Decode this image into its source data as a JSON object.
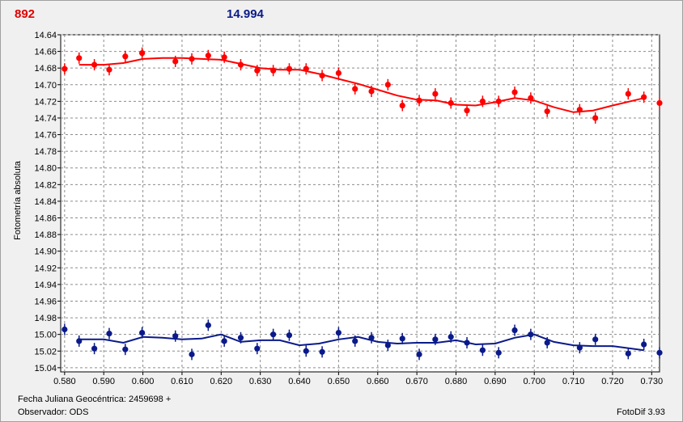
{
  "header": {
    "left_value": "892",
    "right_value": "14.994"
  },
  "footer": {
    "julian_label": "Fecha Juliana Geocéntrica: 2459698 +",
    "observer_label": "Observador: ODS",
    "version_label": "FotoDif 3.93"
  },
  "colors": {
    "red": "#ff0000",
    "blue": "#0a1a8a",
    "grid": "#8c8c8c"
  },
  "chart_data": {
    "type": "scatter",
    "title": "",
    "xlabel": "",
    "ylabel": "Fotometría absoluta",
    "xlim": [
      0.579,
      0.732
    ],
    "ylim": [
      14.64,
      15.045
    ],
    "y_inverted": true,
    "grid": true,
    "x_ticks": [
      0.58,
      0.59,
      0.6,
      0.61,
      0.62,
      0.63,
      0.64,
      0.65,
      0.66,
      0.67,
      0.68,
      0.69,
      0.7,
      0.71,
      0.72,
      0.73
    ],
    "x_tick_labels": [
      "0.580",
      "0.590",
      "0.600",
      "0.610",
      "0.620",
      "0.630",
      "0.640",
      "0.650",
      "0.660",
      "0.670",
      "0.680",
      "0.690",
      "0.700",
      "0.710",
      "0.720",
      "0.730"
    ],
    "y_ticks": [
      14.64,
      14.66,
      14.68,
      14.7,
      14.72,
      14.74,
      14.76,
      14.78,
      14.8,
      14.82,
      14.84,
      14.86,
      14.88,
      14.9,
      14.92,
      14.94,
      14.96,
      14.98,
      15.0,
      15.02,
      15.04
    ],
    "y_tick_labels": [
      "14.64",
      "14.66",
      "14.68",
      "14.70",
      "14.72",
      "14.74",
      "14.76",
      "14.78",
      "14.80",
      "14.82",
      "14.84",
      "14.86",
      "14.88",
      "14.90",
      "14.92",
      "14.94",
      "14.96",
      "14.98",
      "15.00",
      "15.02",
      "15.04"
    ],
    "series": [
      {
        "color": "#ff0000",
        "points": [
          [
            0.58,
            14.681
          ],
          [
            0.5837,
            14.668
          ],
          [
            0.5876,
            14.676
          ],
          [
            0.5914,
            14.682
          ],
          [
            0.5955,
            14.666
          ],
          [
            0.5998,
            14.662
          ],
          [
            0.6083,
            14.672
          ],
          [
            0.6125,
            14.669
          ],
          [
            0.6167,
            14.665
          ],
          [
            0.6208,
            14.667
          ],
          [
            0.625,
            14.676
          ],
          [
            0.6292,
            14.683
          ],
          [
            0.6333,
            14.683
          ],
          [
            0.6374,
            14.681
          ],
          [
            0.6417,
            14.681
          ],
          [
            0.6458,
            14.689
          ],
          [
            0.65,
            14.686
          ],
          [
            0.6542,
            14.705
          ],
          [
            0.6584,
            14.708
          ],
          [
            0.6626,
            14.7
          ],
          [
            0.6663,
            14.725
          ],
          [
            0.6706,
            14.719
          ],
          [
            0.6747,
            14.711
          ],
          [
            0.6787,
            14.722
          ],
          [
            0.6828,
            14.731
          ],
          [
            0.6868,
            14.72
          ],
          [
            0.6909,
            14.72
          ],
          [
            0.695,
            14.709
          ],
          [
            0.6991,
            14.716
          ],
          [
            0.7033,
            14.732
          ],
          [
            0.7116,
            14.73
          ],
          [
            0.7156,
            14.74
          ],
          [
            0.724,
            14.711
          ],
          [
            0.728,
            14.715
          ],
          [
            0.732,
            14.722
          ]
        ],
        "fit": [
          [
            0.5837,
            14.676
          ],
          [
            0.59,
            14.676
          ],
          [
            0.595,
            14.674
          ],
          [
            0.6,
            14.669
          ],
          [
            0.605,
            14.668
          ],
          [
            0.61,
            14.668
          ],
          [
            0.615,
            14.669
          ],
          [
            0.62,
            14.67
          ],
          [
            0.625,
            14.675
          ],
          [
            0.63,
            14.68
          ],
          [
            0.635,
            14.682
          ],
          [
            0.64,
            14.682
          ],
          [
            0.645,
            14.687
          ],
          [
            0.65,
            14.693
          ],
          [
            0.655,
            14.699
          ],
          [
            0.66,
            14.706
          ],
          [
            0.665,
            14.713
          ],
          [
            0.67,
            14.718
          ],
          [
            0.675,
            14.719
          ],
          [
            0.68,
            14.724
          ],
          [
            0.685,
            14.725
          ],
          [
            0.69,
            14.721
          ],
          [
            0.695,
            14.716
          ],
          [
            0.7,
            14.719
          ],
          [
            0.705,
            14.727
          ],
          [
            0.71,
            14.733
          ],
          [
            0.715,
            14.731
          ],
          [
            0.72,
            14.725
          ],
          [
            0.728,
            14.716
          ]
        ]
      },
      {
        "color": "#0a1a8a",
        "points": [
          [
            0.58,
            14.994
          ],
          [
            0.5837,
            15.008
          ],
          [
            0.5876,
            15.017
          ],
          [
            0.5914,
            14.999
          ],
          [
            0.5955,
            15.018
          ],
          [
            0.5998,
            14.998
          ],
          [
            0.6083,
            15.002
          ],
          [
            0.6125,
            15.024
          ],
          [
            0.6167,
            14.989
          ],
          [
            0.6208,
            15.008
          ],
          [
            0.625,
            15.004
          ],
          [
            0.6292,
            15.017
          ],
          [
            0.6333,
            15.0
          ],
          [
            0.6374,
            15.001
          ],
          [
            0.6417,
            15.02
          ],
          [
            0.6458,
            15.021
          ],
          [
            0.65,
            14.998
          ],
          [
            0.6542,
            15.008
          ],
          [
            0.6584,
            15.004
          ],
          [
            0.6626,
            15.013
          ],
          [
            0.6663,
            15.005
          ],
          [
            0.6706,
            15.024
          ],
          [
            0.6747,
            15.006
          ],
          [
            0.6787,
            15.003
          ],
          [
            0.6828,
            15.01
          ],
          [
            0.6868,
            15.019
          ],
          [
            0.6909,
            15.022
          ],
          [
            0.695,
            14.995
          ],
          [
            0.6991,
            15.0
          ],
          [
            0.7033,
            15.01
          ],
          [
            0.7116,
            15.016
          ],
          [
            0.7156,
            15.006
          ],
          [
            0.724,
            15.023
          ],
          [
            0.728,
            15.012
          ],
          [
            0.732,
            15.022
          ]
        ],
        "fit": [
          [
            0.5837,
            15.006
          ],
          [
            0.59,
            15.006
          ],
          [
            0.595,
            15.01
          ],
          [
            0.6,
            15.003
          ],
          [
            0.605,
            15.004
          ],
          [
            0.61,
            15.006
          ],
          [
            0.615,
            15.005
          ],
          [
            0.62,
            15.0
          ],
          [
            0.625,
            15.009
          ],
          [
            0.63,
            15.007
          ],
          [
            0.635,
            15.007
          ],
          [
            0.64,
            15.013
          ],
          [
            0.645,
            15.011
          ],
          [
            0.65,
            15.006
          ],
          [
            0.655,
            15.003
          ],
          [
            0.66,
            15.009
          ],
          [
            0.665,
            15.011
          ],
          [
            0.67,
            15.01
          ],
          [
            0.675,
            15.01
          ],
          [
            0.68,
            15.007
          ],
          [
            0.685,
            15.012
          ],
          [
            0.69,
            15.011
          ],
          [
            0.695,
            15.004
          ],
          [
            0.7,
            15.0
          ],
          [
            0.705,
            15.009
          ],
          [
            0.71,
            15.013
          ],
          [
            0.715,
            15.014
          ],
          [
            0.72,
            15.014
          ],
          [
            0.728,
            15.019
          ]
        ]
      }
    ]
  }
}
